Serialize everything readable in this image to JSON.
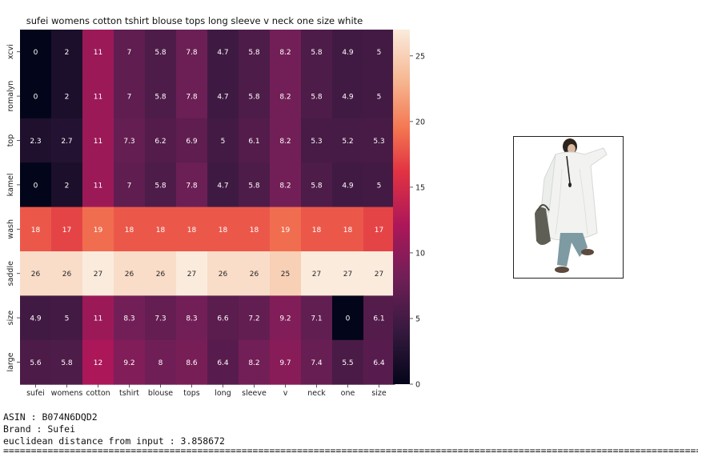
{
  "chart_data": {
    "type": "heatmap",
    "title": "sufei womens cotton tshirt blouse tops long sleeve v neck one size white",
    "x_labels": [
      "sufei",
      "womens",
      "cotton",
      "tshirt",
      "blouse",
      "tops",
      "long",
      "sleeve",
      "v",
      "neck",
      "one",
      "size"
    ],
    "y_labels": [
      "xcvi",
      "romalyn",
      "top",
      "kamel",
      "wash",
      "saddle",
      "size",
      "large"
    ],
    "values": [
      [
        0,
        2,
        11,
        7,
        5.8,
        7.8,
        4.7,
        5.8,
        8.2,
        5.8,
        4.9,
        5
      ],
      [
        0,
        2,
        11,
        7,
        5.8,
        7.8,
        4.7,
        5.8,
        8.2,
        5.8,
        4.9,
        5
      ],
      [
        2.3,
        2.7,
        11,
        7.3,
        6.2,
        6.9,
        5,
        6.1,
        8.2,
        5.3,
        5.2,
        5.3
      ],
      [
        0,
        2,
        11,
        7,
        5.8,
        7.8,
        4.7,
        5.8,
        8.2,
        5.8,
        4.9,
        5
      ],
      [
        18,
        17,
        19,
        18,
        18,
        18,
        18,
        18,
        19,
        18,
        18,
        17
      ],
      [
        26,
        26,
        27,
        26,
        26,
        27,
        26,
        26,
        25,
        27,
        27,
        27
      ],
      [
        4.9,
        5,
        11,
        8.3,
        7.3,
        8.3,
        6.6,
        7.2,
        9.2,
        7.1,
        0,
        6.1
      ],
      [
        5.6,
        5.8,
        12,
        9.2,
        8,
        8.6,
        6.4,
        8.2,
        9.7,
        7.4,
        5.5,
        6.4
      ]
    ],
    "colorbar": {
      "min": 0,
      "max": 27,
      "ticks": [
        "0",
        "5",
        "10",
        "15",
        "20",
        "25"
      ]
    },
    "colormap": "rocket"
  },
  "info": {
    "asin": "ASIN : B074N6DQD2",
    "brand": "Brand : Sufei",
    "distance": "euclidean distance from input : 3.858672",
    "separator": "============================================================================================================================================"
  },
  "product_image": {
    "icon": "product-photo-woman-white-blouse"
  }
}
